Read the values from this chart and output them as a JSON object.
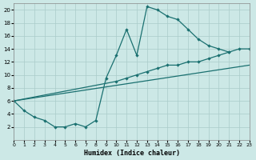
{
  "xlabel": "Humidex (Indice chaleur)",
  "bg_color": "#cce8e6",
  "grid_color": "#aaccca",
  "line_color": "#1a7070",
  "xlim": [
    0,
    23
  ],
  "ylim": [
    0,
    21
  ],
  "xtick_labels": [
    "0",
    "1",
    "2",
    "3",
    "4",
    "5",
    "6",
    "7",
    "8",
    "9",
    "10",
    "11",
    "12",
    "13",
    "14",
    "15",
    "16",
    "17",
    "18",
    "19",
    "20",
    "21",
    "22",
    "23"
  ],
  "xticks": [
    0,
    1,
    2,
    3,
    4,
    5,
    6,
    7,
    8,
    9,
    10,
    11,
    12,
    13,
    14,
    15,
    16,
    17,
    18,
    19,
    20,
    21,
    22,
    23
  ],
  "yticks": [
    2,
    4,
    6,
    8,
    10,
    12,
    14,
    16,
    18,
    20
  ],
  "curve1_x": [
    0,
    1,
    2,
    3,
    4,
    5,
    6,
    7,
    8,
    9,
    10,
    11,
    12,
    13,
    14,
    15,
    16,
    17,
    18,
    19,
    20,
    21
  ],
  "curve1_y": [
    6,
    4.5,
    3.5,
    3,
    2,
    2,
    2.5,
    2,
    3,
    9.5,
    13,
    17,
    13,
    20.5,
    20,
    19,
    18.5,
    17,
    15.5,
    14.5,
    14,
    13.5
  ],
  "curve2_x": [
    0,
    10,
    11,
    12,
    13,
    14,
    15,
    16,
    17,
    18,
    19,
    20,
    21,
    22,
    23
  ],
  "curve2_y": [
    6,
    9,
    9.5,
    10,
    10.5,
    11,
    11.5,
    11.5,
    12,
    12,
    12.5,
    13,
    13.5,
    14,
    14
  ],
  "curve3_x": [
    0,
    23
  ],
  "curve3_y": [
    6,
    11.5
  ]
}
